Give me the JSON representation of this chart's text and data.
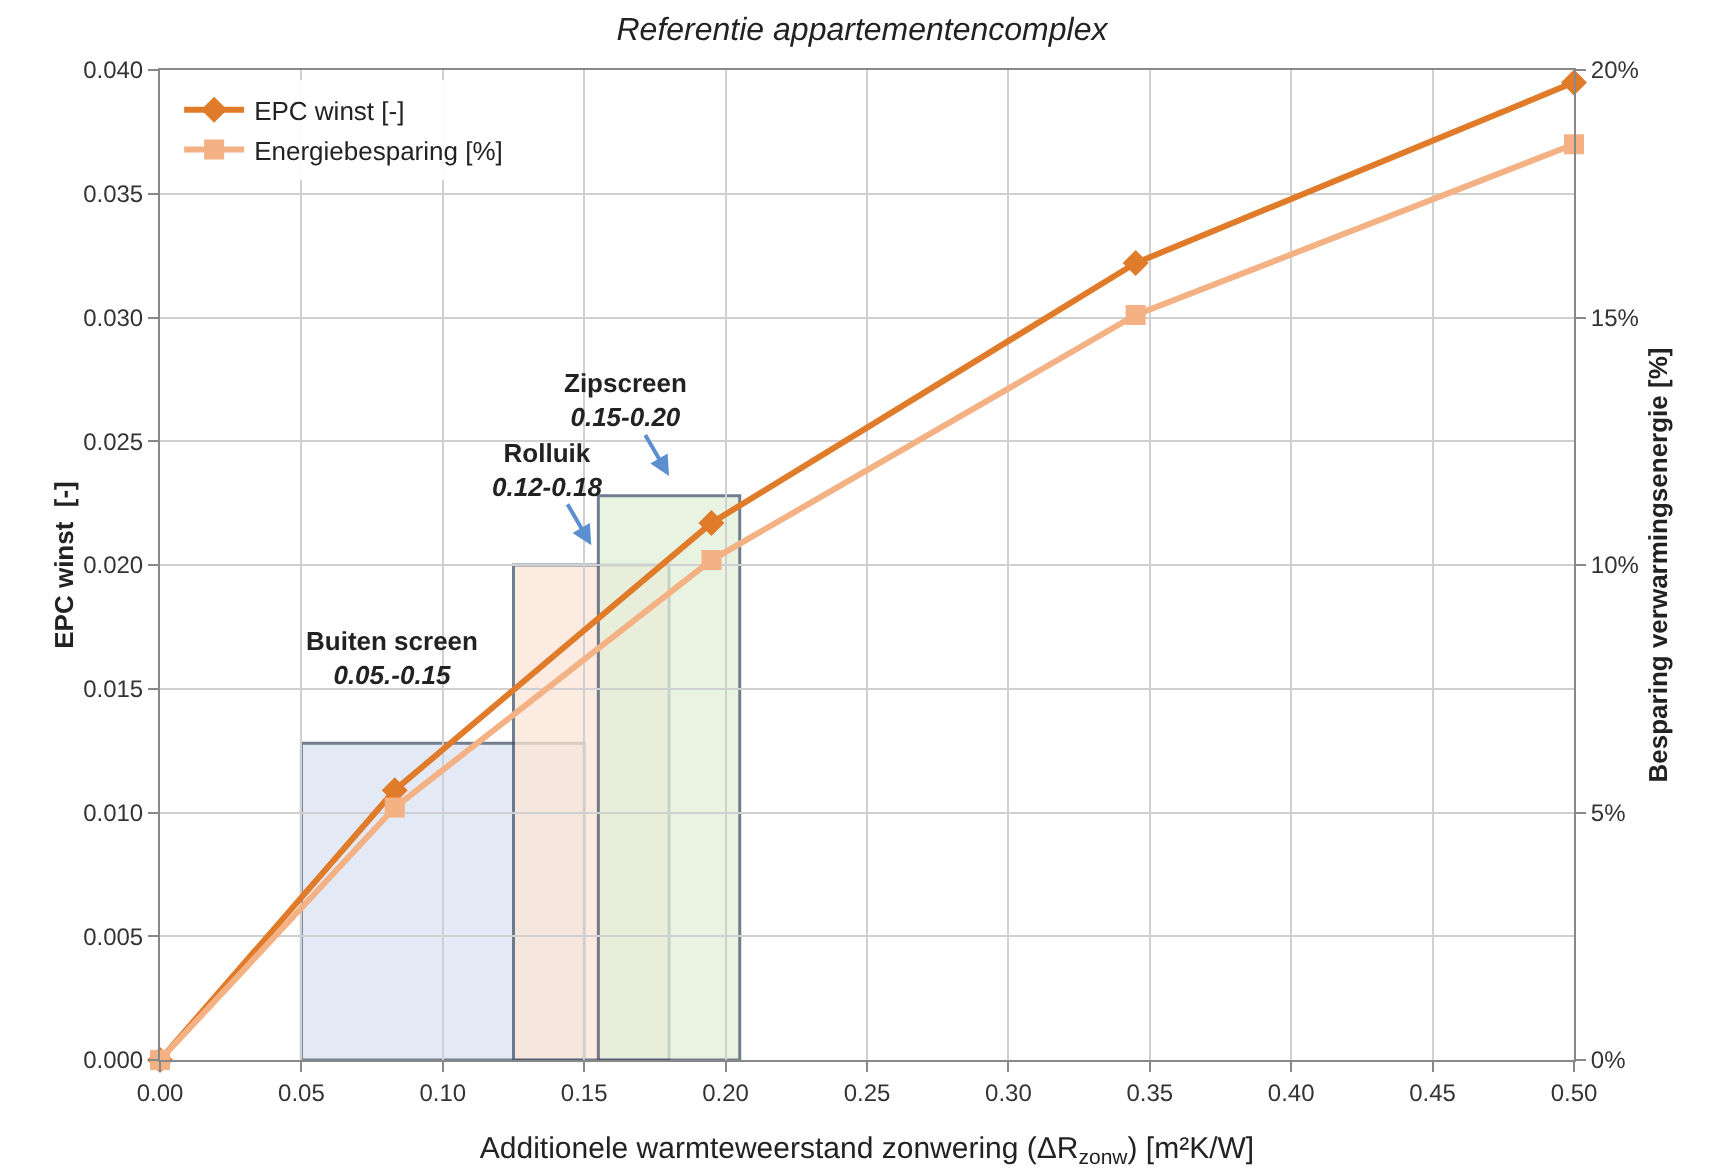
{
  "chart_data": {
    "type": "line",
    "title": "Referentie appartementencomplex",
    "xlabel": "Additionele warmteweerstand zonwering (ΔR$_{zonw}$) [m²K/W]",
    "ylabel": "EPC winst  [-]",
    "y2label": "Besparing verwarmingsenergie [%]",
    "series": [
      {
        "name": "EPC winst [-]",
        "color": "#e07b2a",
        "marker": "diamond",
        "x": [
          0,
          0.083,
          0.195,
          0.345,
          0.5
        ],
        "values": [
          0,
          0.0109,
          0.0217,
          0.0322,
          0.0395
        ]
      },
      {
        "name": "Energiebesparing [%]",
        "color": "#f4b183",
        "marker": "square",
        "axis": "y2",
        "x": [
          0,
          0.083,
          0.195,
          0.345,
          0.5
        ],
        "values": [
          0,
          5.1,
          10.1,
          15.05,
          18.5
        ]
      }
    ],
    "xlim": [
      0,
      0.5
    ],
    "xticks": [
      {
        "value": 0,
        "label": "0.00"
      },
      {
        "value": 0.05,
        "label": "0.05"
      },
      {
        "value": 0.1,
        "label": "0.10"
      },
      {
        "value": 0.15,
        "label": "0.15"
      },
      {
        "value": 0.2,
        "label": "0.20"
      },
      {
        "value": 0.25,
        "label": "0.25"
      },
      {
        "value": 0.3,
        "label": "0.30"
      },
      {
        "value": 0.35,
        "label": "0.35"
      },
      {
        "value": 0.4,
        "label": "0.40"
      },
      {
        "value": 0.45,
        "label": "0.45"
      },
      {
        "value": 0.5,
        "label": "0.50"
      }
    ],
    "ylim": [
      0,
      0.04
    ],
    "yticks": [
      {
        "value": 0,
        "label": "0.000"
      },
      {
        "value": 0.005,
        "label": "0.005"
      },
      {
        "value": 0.01,
        "label": "0.010"
      },
      {
        "value": 0.015,
        "label": "0.015"
      },
      {
        "value": 0.02,
        "label": "0.020"
      },
      {
        "value": 0.025,
        "label": "0.025"
      },
      {
        "value": 0.03,
        "label": "0.030"
      },
      {
        "value": 0.035,
        "label": "0.035"
      },
      {
        "value": 0.04,
        "label": "0.040"
      }
    ],
    "y2lim": [
      0,
      20
    ],
    "y2ticks": [
      {
        "value": 0,
        "label": "0%"
      },
      {
        "value": 5,
        "label": "5%"
      },
      {
        "value": 10,
        "label": "10%"
      },
      {
        "value": 15,
        "label": "15%"
      },
      {
        "value": 20,
        "label": "20%"
      }
    ],
    "bands": [
      {
        "axis": "x",
        "from": 0.05,
        "to": 0.15,
        "label": "Buiten screen\n0.05.-0.15",
        "color": "#dae3f3"
      },
      {
        "axis": "x",
        "from": 0.125,
        "to": 0.18,
        "label": "Rolluik\n0.12-0.18",
        "color": "#fbe5d6"
      },
      {
        "axis": "x",
        "from": 0.155,
        "to": 0.205,
        "label": "Zipscreen\n0.15-0.20",
        "color": "#e2f0d9"
      }
    ],
    "grid": true,
    "legend": "top left",
    "line_style": "solid"
  }
}
